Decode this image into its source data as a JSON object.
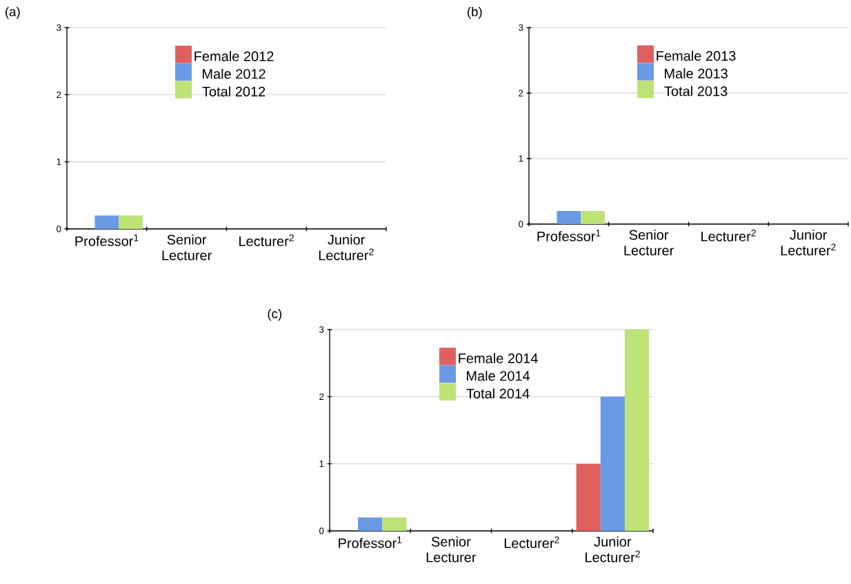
{
  "chart_data": [
    {
      "type": "bar",
      "title": "(a)",
      "categories": [
        "Professor$^{1}$",
        "Senior Lecturer",
        "Lecturer$^{2}$",
        "Junior Lecturer$^{2}$"
      ],
      "series": [
        {
          "name": "Female 2012",
          "color": "#e06060",
          "values": [
            0,
            0,
            0,
            0
          ]
        },
        {
          "name": "Male 2012",
          "color": "#6a9ae6",
          "values": [
            0.2,
            0,
            0,
            0
          ]
        },
        {
          "name": "Total 2012",
          "color": "#bde276",
          "values": [
            0.2,
            0,
            0,
            0
          ]
        }
      ],
      "ylim": [
        0,
        3
      ],
      "yticks": [
        0,
        1,
        2,
        3
      ],
      "grid": "y",
      "legend": "top"
    },
    {
      "type": "bar",
      "title": "(b)",
      "categories": [
        "Professor$^{1}$",
        "Senior Lecturer",
        "Lecturer$^{2}$",
        "Junior Lecturer$^{2}$"
      ],
      "series": [
        {
          "name": "Female 2013",
          "color": "#e06060",
          "values": [
            0,
            0,
            0,
            0
          ]
        },
        {
          "name": "Male 2013",
          "color": "#6a9ae6",
          "values": [
            0.2,
            0,
            0,
            0
          ]
        },
        {
          "name": "Total 2013",
          "color": "#bde276",
          "values": [
            0.2,
            0,
            0,
            0
          ]
        }
      ],
      "ylim": [
        0,
        3
      ],
      "yticks": [
        0,
        1,
        2,
        3
      ],
      "grid": "y",
      "legend": "top"
    },
    {
      "type": "bar",
      "title": "(c)",
      "categories": [
        "Professor$^{1}$",
        "Senior Lecturer",
        "Lecturer$^{2}$",
        "Junior Lecturer$^{2}$"
      ],
      "series": [
        {
          "name": "Female 2014",
          "color": "#e06060",
          "values": [
            0,
            0,
            0,
            1
          ]
        },
        {
          "name": "Male 2014",
          "color": "#6a9ae6",
          "values": [
            0.2,
            0,
            0,
            2
          ]
        },
        {
          "name": "Total 2014",
          "color": "#bde276",
          "values": [
            0.2,
            0,
            0,
            3
          ]
        }
      ],
      "ylim": [
        0,
        3
      ],
      "yticks": [
        0,
        1,
        2,
        3
      ],
      "grid": "y",
      "legend": "top"
    }
  ]
}
